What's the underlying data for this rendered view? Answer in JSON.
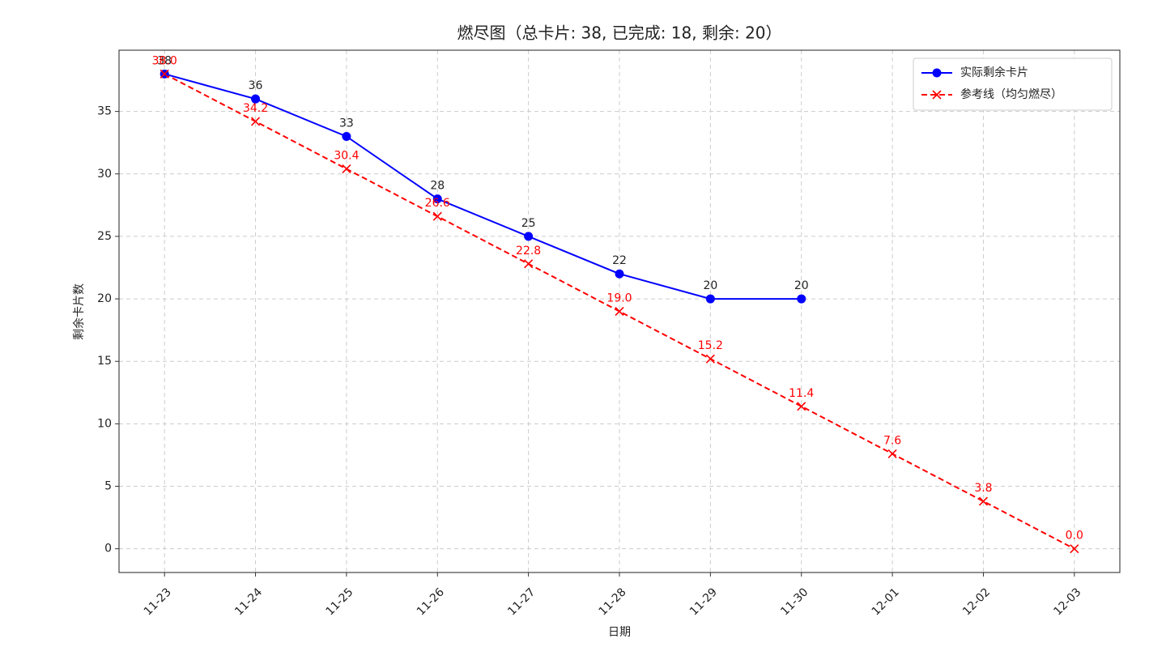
{
  "chart_data": {
    "type": "line",
    "title": "燃尽图（总卡片: 38, 已完成: 18, 剩余: 20）",
    "x_label": "日期",
    "y_label": "剩余卡片数",
    "categories": [
      "11-23",
      "11-24",
      "11-25",
      "11-26",
      "11-27",
      "11-28",
      "11-29",
      "11-30",
      "12-01",
      "12-02",
      "12-03"
    ],
    "series": [
      {
        "name": "实际剩余卡片",
        "color": "#0000ff",
        "marker": "o",
        "linestyle": "solid",
        "label_color": "#222222",
        "values": [
          38,
          36,
          33,
          28,
          25,
          22,
          20,
          20,
          null,
          null,
          null
        ]
      },
      {
        "name": "参考线（均匀燃尽）",
        "color": "#ff0000",
        "marker": "x",
        "linestyle": "dashed",
        "label_color": "#ff0000",
        "values": [
          38,
          34.2,
          30.4,
          26.6,
          22.8,
          19,
          15.2,
          11.4,
          7.6,
          3.8,
          0
        ],
        "value_labels": [
          "38.0",
          "34.2",
          "30.4",
          "26.6",
          "22.8",
          "19.0",
          "15.2",
          "11.4",
          "7.6",
          "3.8",
          "0.0"
        ]
      }
    ],
    "ylim": [
      -1.9,
      39.9
    ],
    "yticks": [
      0,
      5,
      10,
      15,
      20,
      25,
      30,
      35
    ],
    "grid": true,
    "legend": "upper right"
  }
}
